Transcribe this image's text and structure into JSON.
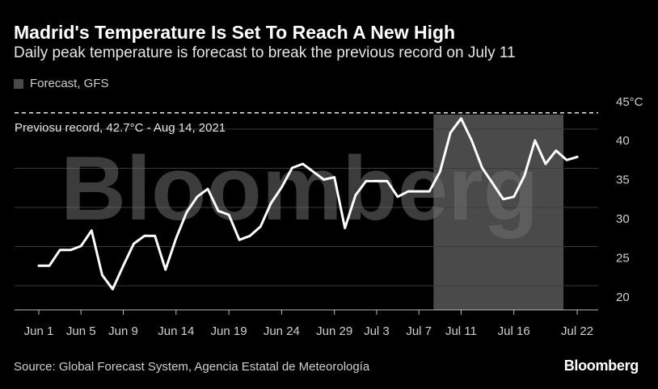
{
  "header": {
    "title": "Madrid's Temperature Is Set To Reach A New High",
    "subtitle": "Daily peak temperature is forecast to break the previous record on July 11"
  },
  "legend": {
    "label": "Forecast, GFS",
    "color": "#4a4a4a"
  },
  "footer": {
    "source": "Source: Global Forecast System, Agencia Estatal de Meteorología",
    "brand": "Bloomberg"
  },
  "watermark": "Bloomberg",
  "chart_data": {
    "type": "line",
    "title": "Madrid's Temperature Is Set To Reach A New High",
    "subtitle": "Daily peak temperature is forecast to break the previous record on July 11",
    "xlabel": "",
    "ylabel": "",
    "y_unit_label": "45°C",
    "ylim": [
      18,
      45
    ],
    "yticks": [
      20,
      25,
      30,
      35,
      40
    ],
    "x_tick_labels": [
      "Jun 1",
      "Jun 5",
      "Jun 9",
      "Jun 14",
      "Jun 19",
      "Jun 24",
      "Jun 29",
      "Jul 3",
      "Jul 7",
      "Jul 11",
      "Jul 16",
      "Jul 22"
    ],
    "x_tick_days": [
      0,
      4,
      8,
      13,
      18,
      23,
      28,
      32,
      36,
      40,
      45,
      51
    ],
    "grid": true,
    "forecast_region": {
      "from_day": 38,
      "to_day": 51,
      "label": "Forecast, GFS"
    },
    "reference_line": {
      "value": 42.7,
      "label": "Previosu record, 42.7°C - Aug 14, 2021"
    },
    "series": [
      {
        "values": [
          24.0,
          24.0,
          26.0,
          26.0,
          26.5,
          28.5,
          22.8,
          21.0,
          24.0,
          26.8,
          27.8,
          27.8,
          23.5,
          27.5,
          30.8,
          32.8,
          33.8,
          31.0,
          30.5,
          27.3,
          27.8,
          29.0,
          32.0,
          34.0,
          36.5,
          37.0,
          36.0,
          35.0,
          35.3,
          28.8,
          33.0,
          34.8,
          34.8,
          34.8,
          32.8,
          33.5,
          33.5,
          33.5,
          36.0,
          41.0,
          42.8,
          40.0,
          36.5,
          34.5,
          32.5,
          32.8,
          35.5,
          40.0,
          37.0,
          38.7,
          37.5,
          37.9
        ]
      }
    ]
  }
}
